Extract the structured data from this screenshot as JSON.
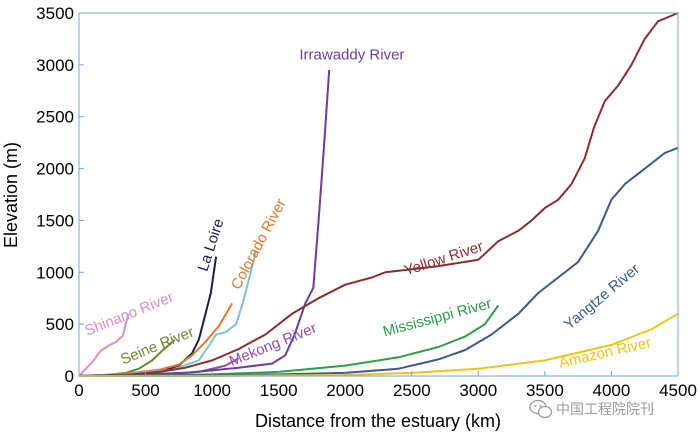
{
  "chart_data": {
    "type": "line",
    "xlabel": "Distance from the estuary (km)",
    "ylabel": "Elevation  (m)",
    "xlim": [
      0,
      4500
    ],
    "ylim": [
      0,
      3500
    ],
    "xticks": [
      0,
      500,
      1000,
      1500,
      2000,
      2500,
      3000,
      3500,
      4000,
      4500
    ],
    "yticks": [
      0,
      500,
      1000,
      1500,
      2000,
      2500,
      3000,
      3500
    ],
    "grid": false,
    "legend": "inline labels next to each curve",
    "series": [
      {
        "name": "Shinano River",
        "color": "#d98fcb",
        "points": [
          [
            0,
            0
          ],
          [
            60,
            80
          ],
          [
            110,
            150
          ],
          [
            160,
            240
          ],
          [
            220,
            290
          ],
          [
            280,
            330
          ],
          [
            330,
            390
          ],
          [
            370,
            600
          ]
        ]
      },
      {
        "name": "Seine River",
        "color": "#6b8a32",
        "points": [
          [
            0,
            0
          ],
          [
            200,
            10
          ],
          [
            350,
            30
          ],
          [
            450,
            70
          ],
          [
            550,
            150
          ],
          [
            630,
            250
          ],
          [
            720,
            350
          ]
        ]
      },
      {
        "name": "La Loire",
        "color": "#1d1d4a",
        "points": [
          [
            0,
            0
          ],
          [
            300,
            15
          ],
          [
            500,
            30
          ],
          [
            650,
            60
          ],
          [
            750,
            100
          ],
          [
            850,
            220
          ],
          [
            900,
            350
          ],
          [
            950,
            600
          ],
          [
            990,
            800
          ],
          [
            1030,
            1150
          ]
        ]
      },
      {
        "name": "Colorado River",
        "color": "#e8772a",
        "points": [
          [
            0,
            0
          ],
          [
            200,
            10
          ],
          [
            400,
            30
          ],
          [
            600,
            60
          ],
          [
            750,
            110
          ],
          [
            850,
            200
          ],
          [
            950,
            330
          ],
          [
            1050,
            480
          ],
          [
            1150,
            700
          ]
        ]
      },
      {
        "name": "Colorado River (upper reach)",
        "color": "#7cc4d0",
        "points": [
          [
            0,
            0
          ],
          [
            400,
            20
          ],
          [
            700,
            60
          ],
          [
            900,
            150
          ],
          [
            980,
            300
          ],
          [
            1030,
            400
          ],
          [
            1100,
            420
          ],
          [
            1180,
            500
          ],
          [
            1230,
            700
          ],
          [
            1280,
            950
          ],
          [
            1330,
            1200
          ]
        ]
      },
      {
        "name": "Mekong River",
        "color": "#8f4fa8",
        "points": [
          [
            0,
            0
          ],
          [
            500,
            10
          ],
          [
            900,
            40
          ],
          [
            1100,
            100
          ],
          [
            1200,
            170
          ]
        ]
      },
      {
        "name": "Irrawaddy River",
        "color": "#6a3fa0",
        "points": [
          [
            0,
            0
          ],
          [
            800,
            30
          ],
          [
            1200,
            80
          ],
          [
            1450,
            120
          ],
          [
            1550,
            200
          ],
          [
            1620,
            400
          ],
          [
            1700,
            700
          ],
          [
            1760,
            850
          ],
          [
            1800,
            1500
          ],
          [
            1840,
            2200
          ],
          [
            1880,
            2950
          ]
        ]
      },
      {
        "name": "Yellow River",
        "color": "#8b2e2e",
        "points": [
          [
            0,
            0
          ],
          [
            200,
            5
          ],
          [
            400,
            15
          ],
          [
            600,
            40
          ],
          [
            800,
            80
          ],
          [
            1000,
            150
          ],
          [
            1200,
            260
          ],
          [
            1400,
            400
          ],
          [
            1600,
            600
          ],
          [
            1800,
            750
          ],
          [
            2000,
            880
          ],
          [
            2200,
            950
          ],
          [
            2300,
            1000
          ],
          [
            2500,
            1030
          ],
          [
            2700,
            1060
          ],
          [
            3000,
            1120
          ],
          [
            3150,
            1300
          ],
          [
            3300,
            1400
          ],
          [
            3400,
            1500
          ],
          [
            3500,
            1620
          ],
          [
            3600,
            1700
          ],
          [
            3700,
            1850
          ],
          [
            3800,
            2100
          ],
          [
            3870,
            2400
          ],
          [
            3950,
            2650
          ],
          [
            4050,
            2800
          ],
          [
            4150,
            3000
          ],
          [
            4250,
            3250
          ],
          [
            4350,
            3420
          ],
          [
            4500,
            3500
          ]
        ]
      },
      {
        "name": "Mississippi River",
        "color": "#2e9e4a",
        "points": [
          [
            0,
            0
          ],
          [
            500,
            5
          ],
          [
            1000,
            15
          ],
          [
            1500,
            40
          ],
          [
            2000,
            100
          ],
          [
            2400,
            180
          ],
          [
            2700,
            280
          ],
          [
            2900,
            380
          ],
          [
            3050,
            500
          ],
          [
            3150,
            680
          ]
        ]
      },
      {
        "name": "Yangtze River",
        "color": "#3b5b8f",
        "points": [
          [
            0,
            0
          ],
          [
            500,
            2
          ],
          [
            1000,
            5
          ],
          [
            1500,
            15
          ],
          [
            2000,
            30
          ],
          [
            2400,
            70
          ],
          [
            2700,
            160
          ],
          [
            2900,
            250
          ],
          [
            3100,
            400
          ],
          [
            3300,
            600
          ],
          [
            3450,
            800
          ],
          [
            3600,
            950
          ],
          [
            3750,
            1100
          ],
          [
            3900,
            1400
          ],
          [
            4000,
            1700
          ],
          [
            4100,
            1850
          ],
          [
            4200,
            1950
          ],
          [
            4300,
            2050
          ],
          [
            4400,
            2150
          ],
          [
            4500,
            2200
          ]
        ]
      },
      {
        "name": "Amazon River",
        "color": "#f2c318",
        "points": [
          [
            0,
            0
          ],
          [
            1000,
            0
          ],
          [
            2000,
            10
          ],
          [
            2500,
            30
          ],
          [
            3000,
            70
          ],
          [
            3500,
            150
          ],
          [
            4000,
            300
          ],
          [
            4300,
            450
          ],
          [
            4500,
            600
          ]
        ]
      }
    ],
    "labels": [
      {
        "text": "Irrawaddy River",
        "color": "#6a3fa0",
        "x": 2050,
        "y": 3050,
        "angle": 0
      },
      {
        "text": "La Loire",
        "color": "#1d1d4a",
        "x": 1025,
        "y": 1250,
        "angle": -72
      },
      {
        "text": "Colorado River",
        "color": "#e8772a",
        "x": 1380,
        "y": 1250,
        "angle": -62
      },
      {
        "text": "Shinano River",
        "color": "#d98fcb",
        "x": 390,
        "y": 555,
        "angle": -22
      },
      {
        "text": "Seine River",
        "color": "#6b8a32",
        "x": 600,
        "y": 250,
        "angle": -22
      },
      {
        "text": "Mekong River",
        "color": "#8f4fa8",
        "x": 1470,
        "y": 260,
        "angle": -22
      },
      {
        "text": "Yellow River",
        "color": "#8b2e2e",
        "x": 2750,
        "y": 1090,
        "angle": -18
      },
      {
        "text": "Mississippi River",
        "color": "#2e9e4a",
        "x": 2700,
        "y": 520,
        "angle": -15
      },
      {
        "text": "Yangtze River",
        "color": "#3b5b8f",
        "x": 3950,
        "y": 730,
        "angle": -40
      },
      {
        "text": "Amazon River",
        "color": "#f2c318",
        "x": 3960,
        "y": 180,
        "angle": -13
      }
    ]
  },
  "watermark": {
    "text": "中国工程院院刊",
    "icon": "wechat-icon"
  }
}
